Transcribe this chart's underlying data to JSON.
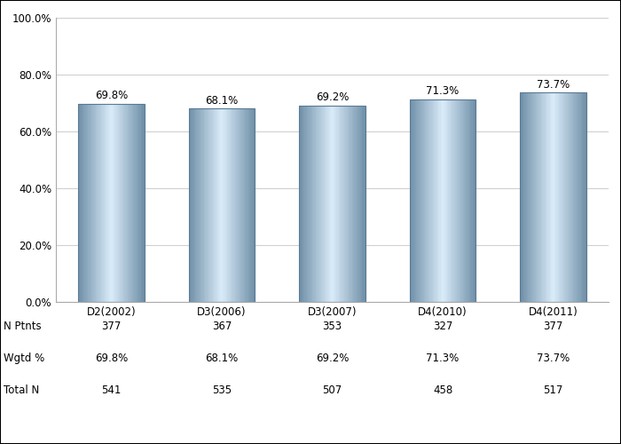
{
  "categories": [
    "D2(2002)",
    "D3(2006)",
    "D3(2007)",
    "D4(2010)",
    "D4(2011)"
  ],
  "values": [
    69.8,
    68.1,
    69.2,
    71.3,
    73.7
  ],
  "n_ptnts": [
    "377",
    "367",
    "353",
    "327",
    "377"
  ],
  "wgtd_pct": [
    "69.8%",
    "68.1%",
    "69.2%",
    "71.3%",
    "73.7%"
  ],
  "total_n": [
    "541",
    "535",
    "507",
    "458",
    "517"
  ],
  "ylim": [
    0,
    100
  ],
  "yticks": [
    0,
    20,
    40,
    60,
    80,
    100
  ],
  "ytick_labels": [
    "0.0%",
    "20.0%",
    "40.0%",
    "60.0%",
    "80.0%",
    "100.0%"
  ],
  "background_color": "#ffffff",
  "grid_color": "#d0d0d0",
  "bar_edge_color": "#5a7a94",
  "bar_base_color": "#9ab4c8",
  "bar_highlight_color": "#ddeeff",
  "label_fontsize": 8.5,
  "tick_fontsize": 8.5,
  "table_fontsize": 8.5,
  "row_labels": [
    "N Ptnts",
    "Wgtd %",
    "Total N"
  ]
}
